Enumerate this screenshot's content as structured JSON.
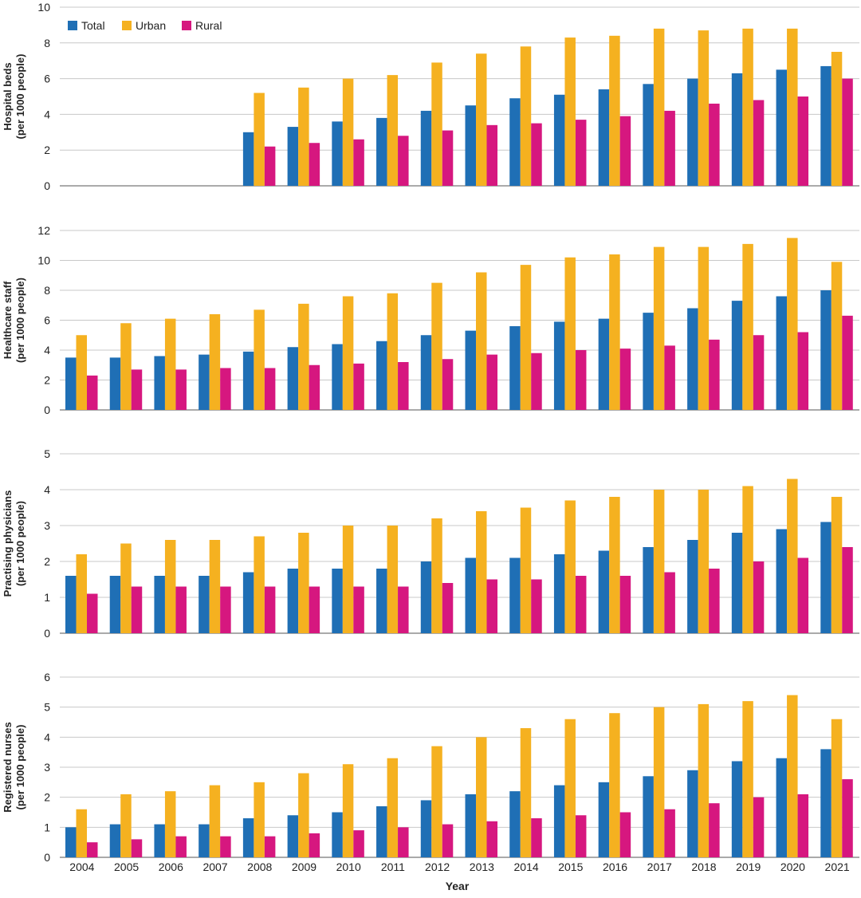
{
  "colors": {
    "total": "#1f6fb5",
    "urban": "#f5b120",
    "rural": "#d6177f",
    "grid": "#c8c8c8",
    "axis": "#555555"
  },
  "legend": [
    "Total",
    "Urban",
    "Rural"
  ],
  "chart_data": [
    {
      "type": "bar",
      "ylabel": [
        "Hospital beds",
        "(per 1000 people)"
      ],
      "ylim": [
        0,
        10
      ],
      "yticks": [
        0,
        2,
        4,
        6,
        8,
        10
      ],
      "categories": [
        "2004",
        "2005",
        "2006",
        "2007",
        "2008",
        "2009",
        "2010",
        "2011",
        "2012",
        "2013",
        "2014",
        "2015",
        "2016",
        "2017",
        "2018",
        "2019",
        "2020",
        "2021"
      ],
      "series": [
        {
          "name": "Total",
          "values": [
            null,
            null,
            null,
            null,
            3.0,
            3.3,
            3.6,
            3.8,
            4.2,
            4.5,
            4.9,
            5.1,
            5.4,
            5.7,
            6.0,
            6.3,
            6.5,
            6.7
          ]
        },
        {
          "name": "Urban",
          "values": [
            null,
            null,
            null,
            null,
            5.2,
            5.5,
            6.0,
            6.2,
            6.9,
            7.4,
            7.8,
            8.3,
            8.4,
            8.8,
            8.7,
            8.8,
            8.8,
            7.5
          ]
        },
        {
          "name": "Rural",
          "values": [
            null,
            null,
            null,
            null,
            2.2,
            2.4,
            2.6,
            2.8,
            3.1,
            3.4,
            3.5,
            3.7,
            3.9,
            4.2,
            4.6,
            4.8,
            5.0,
            6.0
          ]
        }
      ],
      "legend": "top-left",
      "grid": true
    },
    {
      "type": "bar",
      "ylabel": [
        "Healthcare staff",
        "(per 1000 people)"
      ],
      "ylim": [
        0,
        12
      ],
      "yticks": [
        0,
        2,
        4,
        6,
        8,
        10,
        12
      ],
      "categories": [
        "2004",
        "2005",
        "2006",
        "2007",
        "2008",
        "2009",
        "2010",
        "2011",
        "2012",
        "2013",
        "2014",
        "2015",
        "2016",
        "2017",
        "2018",
        "2019",
        "2020",
        "2021"
      ],
      "series": [
        {
          "name": "Total",
          "values": [
            3.5,
            3.5,
            3.6,
            3.7,
            3.9,
            4.2,
            4.4,
            4.6,
            5.0,
            5.3,
            5.6,
            5.9,
            6.1,
            6.5,
            6.8,
            7.3,
            7.6,
            8.0
          ]
        },
        {
          "name": "Urban",
          "values": [
            5.0,
            5.8,
            6.1,
            6.4,
            6.7,
            7.1,
            7.6,
            7.8,
            8.5,
            9.2,
            9.7,
            10.2,
            10.4,
            10.9,
            10.9,
            11.1,
            11.5,
            9.9
          ]
        },
        {
          "name": "Rural",
          "values": [
            2.3,
            2.7,
            2.7,
            2.8,
            2.8,
            3.0,
            3.1,
            3.2,
            3.4,
            3.7,
            3.8,
            4.0,
            4.1,
            4.3,
            4.7,
            5.0,
            5.2,
            6.3
          ]
        }
      ],
      "grid": true
    },
    {
      "type": "bar",
      "ylabel": [
        "Practising physicians",
        "(per 1000 people)"
      ],
      "ylim": [
        0,
        5
      ],
      "yticks": [
        0,
        1,
        2,
        3,
        4,
        5
      ],
      "categories": [
        "2004",
        "2005",
        "2006",
        "2007",
        "2008",
        "2009",
        "2010",
        "2011",
        "2012",
        "2013",
        "2014",
        "2015",
        "2016",
        "2017",
        "2018",
        "2019",
        "2020",
        "2021"
      ],
      "series": [
        {
          "name": "Total",
          "values": [
            1.6,
            1.6,
            1.6,
            1.6,
            1.7,
            1.8,
            1.8,
            1.8,
            2.0,
            2.1,
            2.1,
            2.2,
            2.3,
            2.4,
            2.6,
            2.8,
            2.9,
            3.1
          ]
        },
        {
          "name": "Urban",
          "values": [
            2.2,
            2.5,
            2.6,
            2.6,
            2.7,
            2.8,
            3.0,
            3.0,
            3.2,
            3.4,
            3.5,
            3.7,
            3.8,
            4.0,
            4.0,
            4.1,
            4.3,
            3.8
          ]
        },
        {
          "name": "Rural",
          "values": [
            1.1,
            1.3,
            1.3,
            1.3,
            1.3,
            1.3,
            1.3,
            1.3,
            1.4,
            1.5,
            1.5,
            1.6,
            1.6,
            1.7,
            1.8,
            2.0,
            2.1,
            2.4
          ]
        }
      ],
      "grid": true
    },
    {
      "type": "bar",
      "ylabel": [
        "Registered nurses",
        "(per 1000 people)"
      ],
      "xlabel": "Year",
      "ylim": [
        0,
        6
      ],
      "yticks": [
        0,
        1,
        2,
        3,
        4,
        5,
        6
      ],
      "categories": [
        "2004",
        "2005",
        "2006",
        "2007",
        "2008",
        "2009",
        "2010",
        "2011",
        "2012",
        "2013",
        "2014",
        "2015",
        "2016",
        "2017",
        "2018",
        "2019",
        "2020",
        "2021"
      ],
      "series": [
        {
          "name": "Total",
          "values": [
            1.0,
            1.1,
            1.1,
            1.1,
            1.3,
            1.4,
            1.5,
            1.7,
            1.9,
            2.1,
            2.2,
            2.4,
            2.5,
            2.7,
            2.9,
            3.2,
            3.3,
            3.6
          ]
        },
        {
          "name": "Urban",
          "values": [
            1.6,
            2.1,
            2.2,
            2.4,
            2.5,
            2.8,
            3.1,
            3.3,
            3.7,
            4.0,
            4.3,
            4.6,
            4.8,
            5.0,
            5.1,
            5.2,
            5.4,
            4.6
          ]
        },
        {
          "name": "Rural",
          "values": [
            0.5,
            0.6,
            0.7,
            0.7,
            0.7,
            0.8,
            0.9,
            1.0,
            1.1,
            1.2,
            1.3,
            1.4,
            1.5,
            1.6,
            1.8,
            2.0,
            2.1,
            2.6
          ]
        }
      ],
      "grid": true
    }
  ]
}
